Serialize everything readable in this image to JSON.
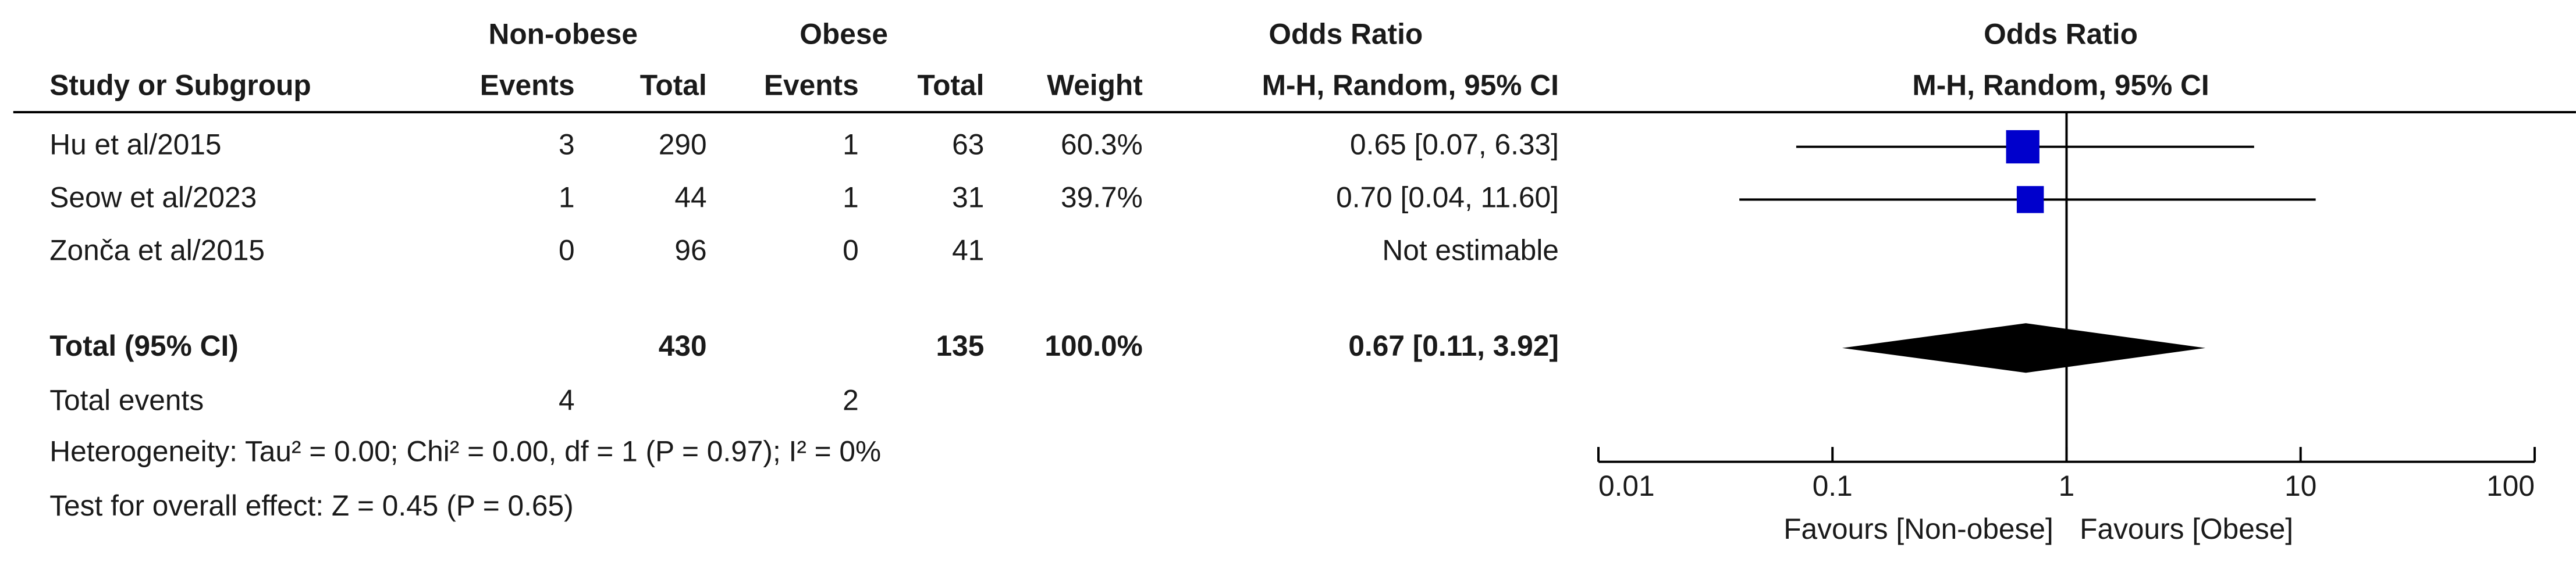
{
  "chart_data": {
    "type": "forest",
    "column_groups": [
      "Non-obese",
      "Obese",
      "Odds Ratio"
    ],
    "columns": [
      "Study or Subgroup",
      "Events",
      "Total",
      "Events",
      "Total",
      "Weight",
      "M-H, Random, 95% CI"
    ],
    "studies": [
      {
        "name": "Hu et al/2015",
        "events1": 3,
        "total1": 290,
        "events2": 1,
        "total2": 63,
        "weight": 60.3,
        "weight_label": "60.3%",
        "or": 0.65,
        "ci": [
          0.07,
          6.33
        ],
        "or_label": "0.65 [0.07, 6.33]"
      },
      {
        "name": "Seow et al/2023",
        "events1": 1,
        "total1": 44,
        "events2": 1,
        "total2": 31,
        "weight": 39.7,
        "weight_label": "39.7%",
        "or": 0.7,
        "ci": [
          0.04,
          11.6
        ],
        "or_label": "0.70 [0.04, 11.60]"
      },
      {
        "name": "Zonča et al/2015",
        "events1": 0,
        "total1": 96,
        "events2": 0,
        "total2": 41,
        "weight": null,
        "or": null,
        "ci": null,
        "or_label": "Not estimable"
      }
    ],
    "total": {
      "name": "Total (95% CI)",
      "total1": 430,
      "total2": 135,
      "weight": 100.0,
      "weight_label": "100.0%",
      "or": 0.67,
      "ci": [
        0.11,
        3.92
      ],
      "or_label": "0.67 [0.11, 3.92]"
    },
    "total_events": {
      "name": "Total events",
      "events1": 4,
      "events2": 2
    },
    "heterogeneity": "Heterogeneity: Tau² = 0.00; Chi² = 0.00, df = 1 (P = 0.97); I² = 0%",
    "overall_effect": "Test for overall effect: Z = 0.45 (P = 0.65)",
    "plot_title": "Odds Ratio",
    "plot_subtitle": "M-H, Random, 95% CI",
    "xlim": [
      0.01,
      100
    ],
    "xticks": [
      0.01,
      0.1,
      1,
      10,
      100
    ],
    "log_scale": true,
    "x_labels": [
      "Favours [Non-obese]",
      "Favours [Obese]"
    ],
    "color": "#0000cc",
    "total_color": "#000000"
  }
}
